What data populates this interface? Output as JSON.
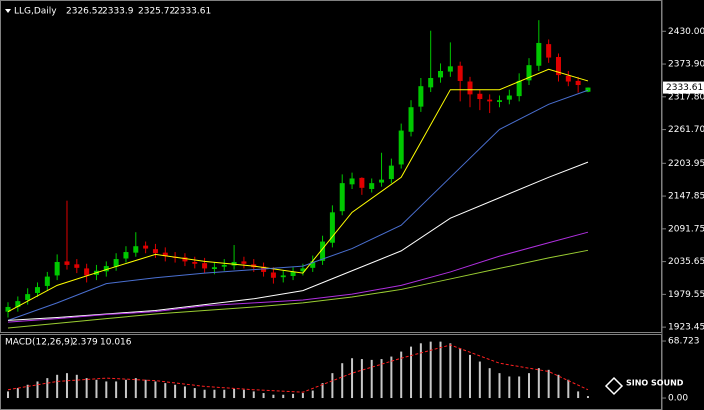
{
  "chart_data": {
    "type": "candlestick",
    "title": "LLG,Daily",
    "up_color": "#00c800",
    "down_color": "#e00000",
    "open": [
      1950,
      1958,
      1970,
      1982,
      1994,
      2012,
      2036,
      2031,
      2024,
      2013,
      2019,
      2027,
      2041,
      2051,
      2063,
      2057,
      2051,
      2044,
      2043,
      2035,
      2033,
      2023,
      2027,
      2029,
      2036,
      2031,
      2027,
      2017,
      2009,
      2011,
      2019,
      2025,
      2037,
      2068,
      2122,
      2168,
      2179,
      2160,
      2171,
      2177,
      2202,
      2258,
      2301,
      2334,
      2351,
      2361,
      2371,
      2344,
      2323,
      2313,
      2309,
      2313,
      2319,
      2346,
      2371,
      2408,
      2386,
      2354,
      2345,
      2326.52
    ],
    "high": [
      1966,
      1976,
      1990,
      2000,
      2018,
      2048,
      2140,
      2040,
      2032,
      2030,
      2036,
      2050,
      2062,
      2086,
      2070,
      2066,
      2060,
      2052,
      2050,
      2044,
      2042,
      2034,
      2040,
      2064,
      2044,
      2040,
      2034,
      2026,
      2020,
      2026,
      2032,
      2046,
      2080,
      2132,
      2185,
      2188,
      2180,
      2178,
      2222,
      2212,
      2272,
      2312,
      2350,
      2431,
      2375,
      2411,
      2378,
      2352,
      2330,
      2322,
      2320,
      2330,
      2358,
      2384,
      2449,
      2416,
      2392,
      2362,
      2352,
      2333.9
    ],
    "low": [
      1940,
      1950,
      1962,
      1975,
      1986,
      2004,
      2022,
      2016,
      2000,
      2004,
      2010,
      2020,
      2034,
      2044,
      2050,
      2042,
      2036,
      2034,
      2028,
      2024,
      2016,
      2014,
      2020,
      2022,
      2024,
      2018,
      2010,
      1998,
      2000,
      2004,
      2012,
      2018,
      2030,
      2060,
      2115,
      2160,
      2150,
      2154,
      2164,
      2170,
      2195,
      2250,
      2292,
      2326,
      2342,
      2352,
      2310,
      2300,
      2295,
      2290,
      2300,
      2305,
      2310,
      2338,
      2362,
      2376,
      2344,
      2336,
      2325,
      2325.72
    ],
    "close": [
      1958,
      1968,
      1980,
      1992,
      2010,
      2035,
      2030,
      2025,
      2012,
      2020,
      2028,
      2040,
      2052,
      2062,
      2058,
      2050,
      2045,
      2042,
      2036,
      2032,
      2024,
      2026,
      2030,
      2035,
      2032,
      2026,
      2018,
      2008,
      2012,
      2018,
      2024,
      2036,
      2070,
      2120,
      2170,
      2178,
      2162,
      2170,
      2176,
      2200,
      2260,
      2300,
      2336,
      2350,
      2362,
      2370,
      2345,
      2322,
      2314,
      2310,
      2312,
      2320,
      2345,
      2372,
      2410,
      2385,
      2355,
      2344,
      2338,
      2333.61
    ],
    "ylim": [
      1910,
      2475
    ],
    "yticks": [
      {
        "value": 2430,
        "label": "2430.00"
      },
      {
        "value": 2373.9,
        "label": "2373.90"
      },
      {
        "value": 2317.8,
        "label": "2317.80"
      },
      {
        "value": 2261.7,
        "label": "2261.70"
      },
      2203.95,
      2147.85,
      2091.75,
      2035.65,
      1979.55,
      1923.45
    ],
    "ma_x": [
      0,
      5,
      10,
      15,
      20,
      25,
      30,
      35,
      40,
      45,
      50,
      55,
      59
    ],
    "moving_averages": [
      {
        "color": "#ffff00",
        "values": [
          1950,
          1995,
          2022,
          2048,
          2036,
          2028,
          2016,
          2120,
          2180,
          2330,
          2330,
          2365,
          2345
        ]
      },
      {
        "color": "#4a6fd0",
        "values": [
          1935,
          1965,
          1998,
          2008,
          2016,
          2022,
          2028,
          2058,
          2098,
          2180,
          2262,
          2305,
          2329
        ]
      },
      {
        "color": "#ffffff",
        "values": [
          1935,
          1940,
          1946,
          1952,
          1962,
          1972,
          1986,
          2020,
          2054,
          2110,
          2145,
          2180,
          2206
        ]
      },
      {
        "color": "#b030e0",
        "values": [
          1932,
          1938,
          1945,
          1950,
          1960,
          1965,
          1970,
          1980,
          1995,
          2018,
          2045,
          2068,
          2086
        ]
      },
      {
        "color": "#9acd32",
        "values": [
          1922,
          1930,
          1938,
          1946,
          1952,
          1958,
          1965,
          1975,
          1988,
          2006,
          2024,
          2042,
          2055
        ]
      }
    ],
    "macd": {
      "title": "MACD(12,26,9)",
      "color": "#c8c8c8",
      "signal_color": "#ff2020",
      "values": [
        8,
        12,
        16,
        20,
        24,
        28,
        30,
        28,
        24,
        22,
        20,
        20,
        22,
        24,
        22,
        20,
        18,
        16,
        14,
        12,
        10,
        10,
        10,
        11,
        10,
        8,
        6,
        4,
        4,
        5,
        6,
        9,
        18,
        30,
        42,
        48,
        47,
        46,
        47,
        50,
        56,
        62,
        66,
        68,
        68,
        66,
        60,
        52,
        44,
        36,
        30,
        26,
        26,
        30,
        36,
        34,
        28,
        22,
        8,
        2.379
      ],
      "signal": [
        10,
        20,
        24,
        21,
        14,
        10,
        7,
        30,
        48,
        64,
        42,
        32,
        10.016
      ],
      "ylim": [
        -8.4,
        76
      ],
      "yticks": [
        68.723,
        {
          "value": 0,
          "label": "0.00"
        }
      ]
    }
  },
  "logo": {
    "text": "SINO SOUND"
  }
}
